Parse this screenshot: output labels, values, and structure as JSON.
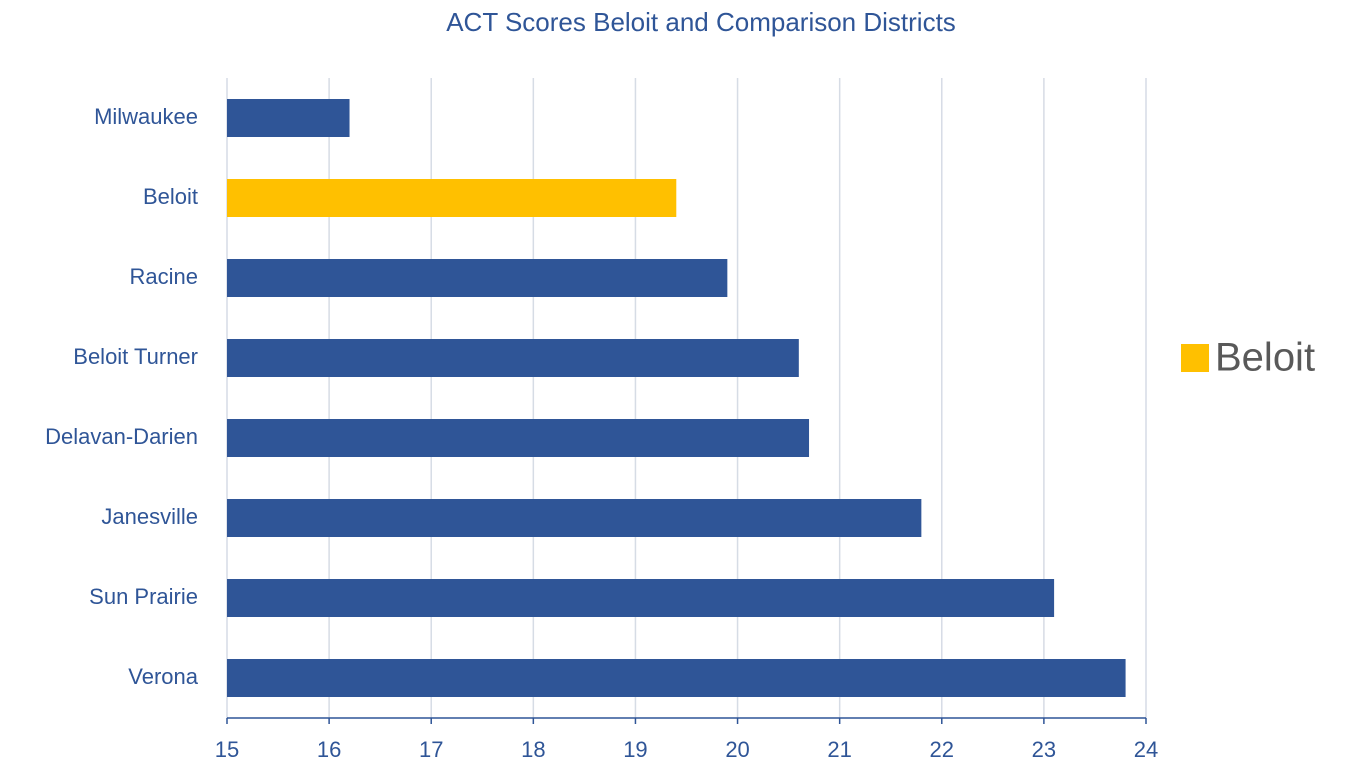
{
  "chart_data": {
    "type": "hbar",
    "title": "ACT Scores Beloit and Comparison Districts",
    "categories": [
      "Milwaukee",
      "Beloit",
      "Racine",
      "Beloit Turner",
      "Delavan-Darien",
      "Janesville",
      "Sun Prairie",
      "Verona"
    ],
    "values": [
      16.2,
      19.4,
      19.9,
      20.6,
      20.7,
      21.8,
      23.1,
      23.8
    ],
    "colors": [
      "#2f5597",
      "#ffc000",
      "#2f5597",
      "#2f5597",
      "#2f5597",
      "#2f5597",
      "#2f5597",
      "#2f5597"
    ],
    "xlim": [
      15,
      24
    ],
    "xticks": [
      15,
      16,
      17,
      18,
      19,
      20,
      21,
      22,
      23,
      24
    ],
    "grid": true,
    "legend": {
      "position": "right",
      "entries": [
        {
          "name": "Beloit",
          "color": "#ffc000"
        }
      ]
    }
  }
}
